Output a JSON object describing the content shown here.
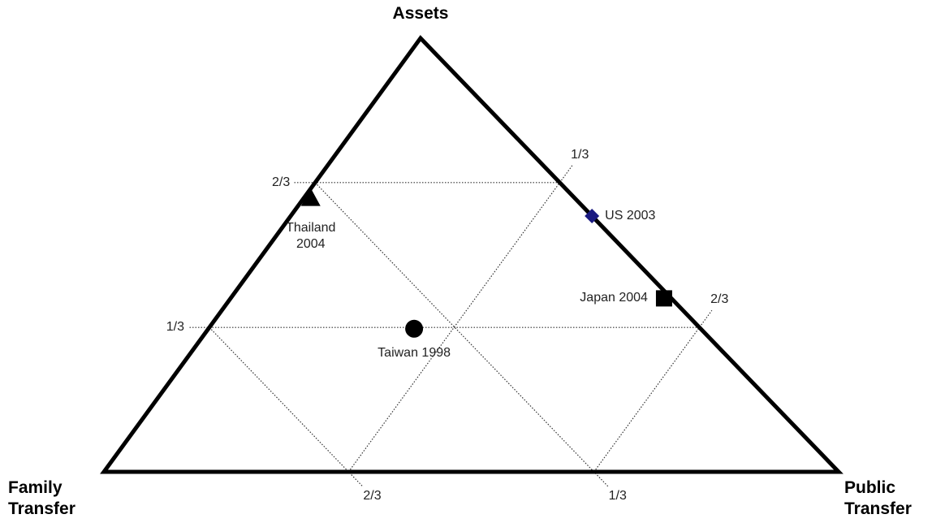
{
  "chart_data": {
    "type": "ternary",
    "axes": [
      {
        "title": "Assets",
        "ticks": [
          {
            "value": 0.333,
            "label": "1/3"
          },
          {
            "value": 0.667,
            "label": "2/3"
          }
        ]
      },
      {
        "title": "Family Transfer",
        "ticks": [
          {
            "value": 0.333,
            "label": "1/3"
          },
          {
            "value": 0.667,
            "label": "2/3"
          }
        ]
      },
      {
        "title": "Public Transfer",
        "ticks": [
          {
            "value": 0.333,
            "label": "1/3"
          },
          {
            "value": 0.667,
            "label": "2/3"
          }
        ]
      }
    ],
    "grid": true,
    "series": [
      {
        "name": "Thailand 2004",
        "marker": "triangle",
        "color": "#000000",
        "values": [
          0.63,
          0.36,
          0.01
        ]
      },
      {
        "name": "US 2003",
        "marker": "diamond",
        "color": "#1a1a80",
        "values": [
          0.59,
          0.0,
          0.41
        ]
      },
      {
        "name": "Japan 2004",
        "marker": "square",
        "color": "#000000",
        "values": [
          0.4,
          0.01,
          0.59
        ]
      },
      {
        "name": "Taiwan 1998",
        "marker": "circle",
        "color": "#000000",
        "values": [
          0.33,
          0.39,
          0.28
        ]
      }
    ]
  }
}
